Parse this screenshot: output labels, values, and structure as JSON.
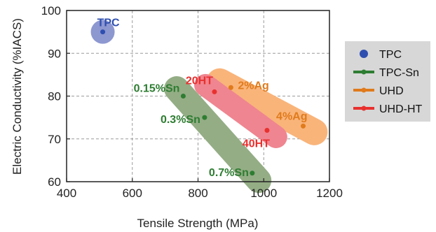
{
  "chart_data": {
    "type": "scatter",
    "xlabel": "Tensile Strength (MPa)",
    "ylabel": "Electric Conductivity (%IACS)",
    "xlim": [
      400,
      1200
    ],
    "ylim": [
      60,
      100
    ],
    "xticks": [
      "400",
      "600",
      "800",
      "1000",
      "1200"
    ],
    "yticks": [
      "60",
      "70",
      "80",
      "90",
      "100"
    ],
    "grid": true,
    "legend_placement": "right",
    "series": [
      {
        "name": "TPC",
        "color": "#2f4fb0",
        "band_color": "#8d97d0",
        "points": [
          {
            "x": 510,
            "y": 95,
            "label": "TPC"
          }
        ]
      },
      {
        "name": "TPC-Sn",
        "color": "#2e7d32",
        "band_color": "#94ad85",
        "points": [
          {
            "x": 755,
            "y": 80,
            "label": "0.15%Sn"
          },
          {
            "x": 820,
            "y": 75,
            "label": "0.3%Sn"
          },
          {
            "x": 965,
            "y": 62,
            "label": "0.7%Sn"
          }
        ]
      },
      {
        "name": "UHD",
        "color": "#e07b1c",
        "band_color": "#f9b47a",
        "points": [
          {
            "x": 900,
            "y": 82,
            "label": "2%Ag"
          },
          {
            "x": 1120,
            "y": 73,
            "label": "4%Ag"
          }
        ]
      },
      {
        "name": "UHD-HT",
        "color": "#e8312f",
        "band_color": "#ef8590",
        "points": [
          {
            "x": 850,
            "y": 81,
            "label": "20HT"
          },
          {
            "x": 1010,
            "y": 72,
            "label": "40HT"
          }
        ]
      }
    ]
  }
}
